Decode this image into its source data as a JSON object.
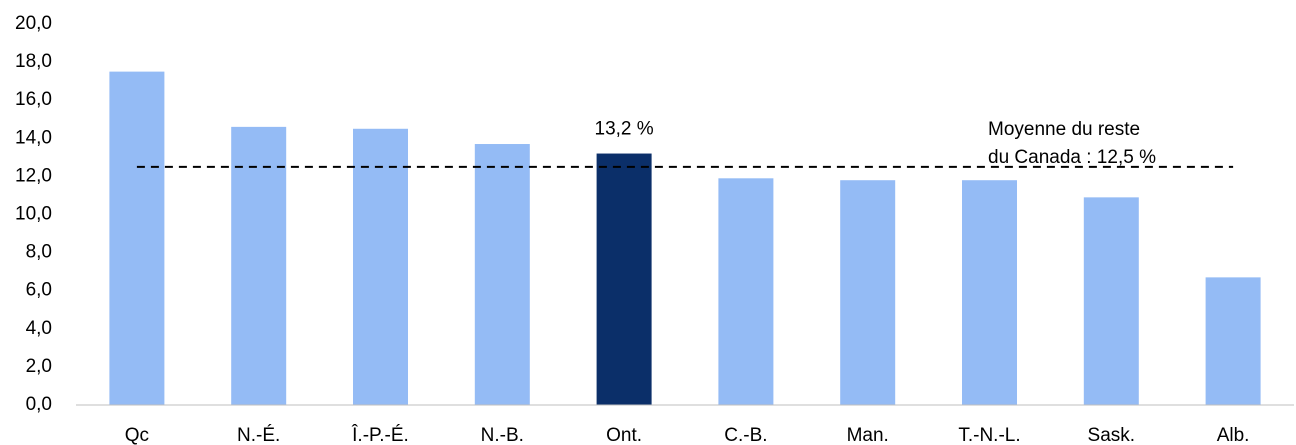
{
  "chart_data": {
    "type": "bar",
    "categories": [
      "Qc",
      "N.-É.",
      "Î.-P.-É.",
      "N.-B.",
      "Ont.",
      "C.-B.",
      "Man.",
      "T.-N.-L.",
      "Sask.",
      "Alb."
    ],
    "values": [
      17.5,
      14.6,
      14.5,
      13.7,
      13.2,
      11.9,
      11.8,
      11.8,
      10.9,
      6.7
    ],
    "value_labels": [
      null,
      null,
      null,
      null,
      "13,2 %",
      null,
      null,
      null,
      null,
      null
    ],
    "colors": [
      "#94bbf5",
      "#94bbf5",
      "#94bbf5",
      "#94bbf5",
      "#0b2f69",
      "#94bbf5",
      "#94bbf5",
      "#94bbf5",
      "#94bbf5",
      "#94bbf5"
    ],
    "ylim": [
      0,
      20
    ],
    "yticks": [
      {
        "value": 0,
        "label": "0,0"
      },
      {
        "value": 2,
        "label": "2,0"
      },
      {
        "value": 4,
        "label": "4,0"
      },
      {
        "value": 6,
        "label": "6,0"
      },
      {
        "value": 8,
        "label": "8,0"
      },
      {
        "value": 10,
        "label": "10,0"
      },
      {
        "value": 12,
        "label": "12,0"
      },
      {
        "value": 14,
        "label": "14,0"
      },
      {
        "value": 16,
        "label": "16,0"
      },
      {
        "value": 18,
        "label": "18,0"
      },
      {
        "value": 20,
        "label": "20,0"
      }
    ],
    "grid": false,
    "reference_line": {
      "value": 12.5,
      "label": [
        "Moyenne du reste",
        "du Canada : 12,5 %"
      ]
    }
  }
}
